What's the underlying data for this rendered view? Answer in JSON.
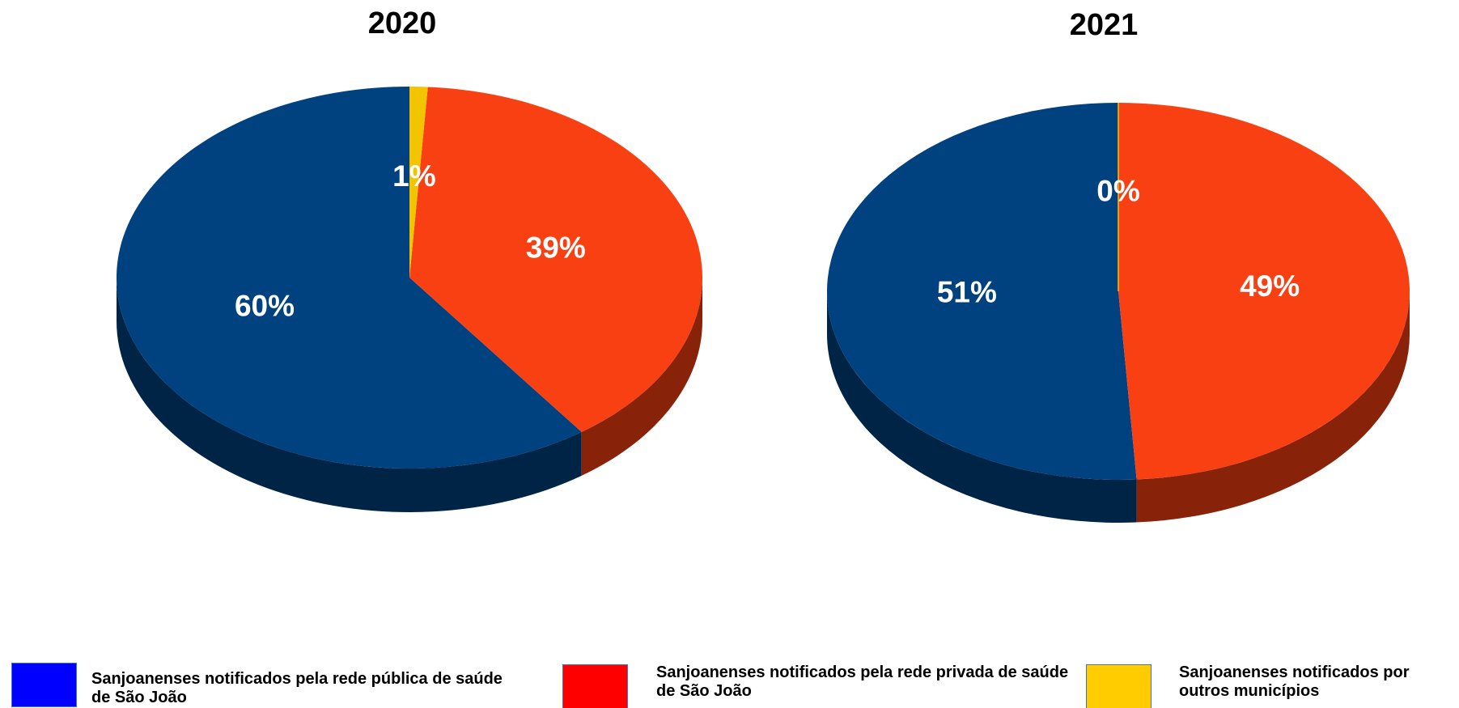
{
  "chart_data": [
    {
      "type": "pie",
      "title": "2020",
      "categories": [
        "Sanjoanenses notificados pela rede pública de saúde de São João",
        "Sanjoanenses notificados pela rede privada de saúde de São João",
        "Sanjoanenses notificados por outros municípios"
      ],
      "values": [
        60,
        39,
        1
      ],
      "value_labels": [
        "60%",
        "39%",
        "1%"
      ],
      "colors": [
        "#00417f",
        "#f84012",
        "#f2c500"
      ]
    },
    {
      "type": "pie",
      "title": "2021",
      "categories": [
        "Sanjoanenses notificados pela rede pública de saúde de São João",
        "Sanjoanenses notificados pela rede privada de saúde de São João",
        "Sanjoanenses notificados por outros municípios"
      ],
      "values": [
        51,
        49,
        0
      ],
      "value_labels": [
        "51%",
        "49%",
        "0%"
      ],
      "colors": [
        "#00417f",
        "#f84012",
        "#f2c500"
      ]
    }
  ],
  "legend": {
    "entries": [
      {
        "label": "Sanjoanenses notificados pela rede pública de saúde de São João",
        "color": "#0000ff"
      },
      {
        "label": "Sanjoanenses notificados pela rede privada de saúde de São João",
        "color": "#ff0000"
      },
      {
        "label": "Sanjoanenses notificados por outros municípios",
        "color": "#ffcc00"
      }
    ]
  }
}
